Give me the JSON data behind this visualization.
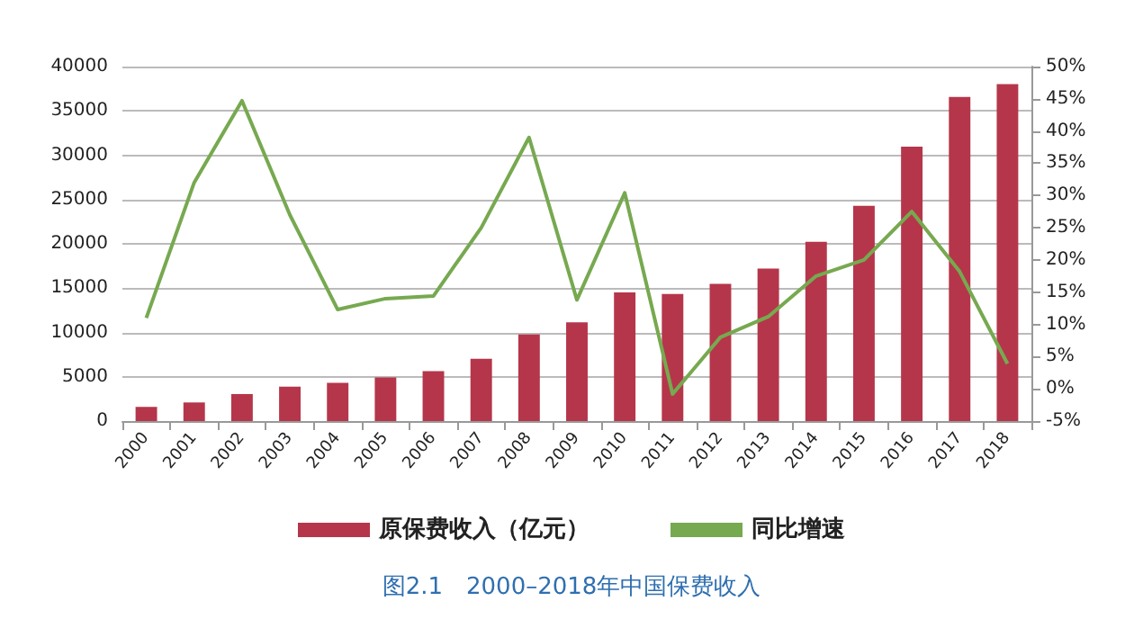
{
  "chart_data": {
    "type": "bar",
    "title": "图2.1　2000–2018年中国保费收入",
    "categories": [
      "2000",
      "2001",
      "2002",
      "2003",
      "2004",
      "2005",
      "2006",
      "2007",
      "2008",
      "2009",
      "2010",
      "2011",
      "2012",
      "2013",
      "2014",
      "2015",
      "2016",
      "2017",
      "2018"
    ],
    "series": [
      {
        "name": "原保费收入（亿元）",
        "color": "#b5364a",
        "values": [
          1600,
          2100,
          3050,
          3880,
          4320,
          4930,
          5640,
          7040,
          9780,
          11140,
          14530,
          14340,
          15490,
          17220,
          20230,
          24280,
          30960,
          36580,
          38020
        ]
      },
      {
        "name": "同比增速",
        "type": "line",
        "axis": "y2",
        "color": "#77a950",
        "values": [
          11,
          32,
          44.7,
          27,
          12.3,
          14,
          14.4,
          25,
          39,
          13.8,
          30.4,
          -0.8,
          8,
          11.2,
          17.5,
          20,
          27.5,
          18.2,
          3.9
        ]
      }
    ],
    "ylim": [
      0,
      40000
    ],
    "yticks": [
      0,
      5000,
      10000,
      15000,
      20000,
      25000,
      30000,
      35000,
      40000
    ],
    "y2lim": [
      -5,
      50
    ],
    "y2ticks": [
      {
        "value": -5,
        "label": "-5%"
      },
      {
        "value": 0,
        "label": "0%"
      },
      {
        "value": 5,
        "label": "5%"
      },
      {
        "value": 10,
        "label": "10%"
      },
      {
        "value": 15,
        "label": "15%"
      },
      {
        "value": 20,
        "label": "20%"
      },
      {
        "value": 25,
        "label": "25%"
      },
      {
        "value": 30,
        "label": "30%"
      },
      {
        "value": 35,
        "label": "35%"
      },
      {
        "value": 40,
        "label": "40%"
      },
      {
        "value": 45,
        "label": "45%"
      },
      {
        "value": 50,
        "label": "50%"
      }
    ],
    "grid": "y",
    "legend": "bottom",
    "marker": "none"
  }
}
